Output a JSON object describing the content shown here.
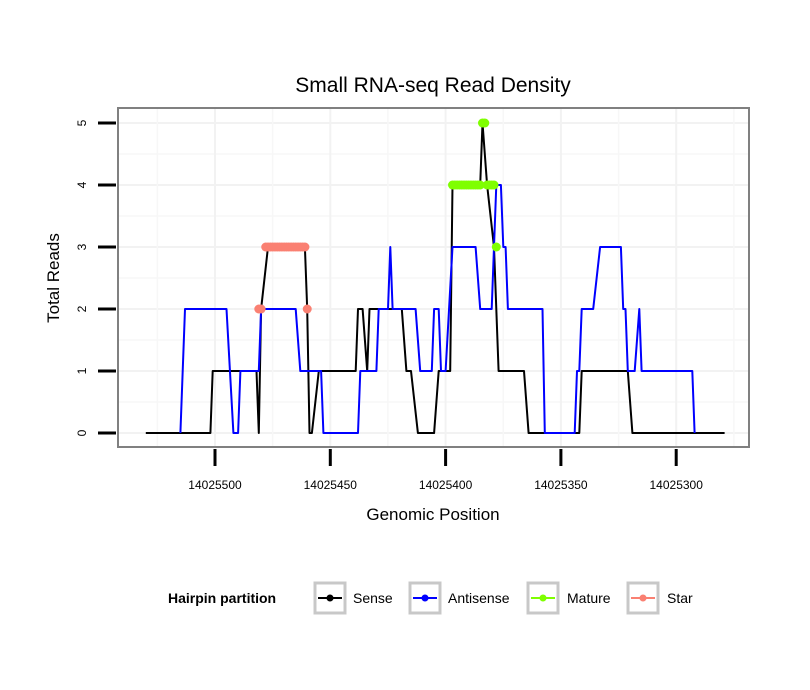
{
  "chart_data": {
    "type": "line",
    "title": "Small RNA-seq Read Density",
    "xlabel": "Genomic Position",
    "ylabel": "Total Reads",
    "x_reversed": true,
    "xlim": [
      14025542,
      14025269
    ],
    "ylim": [
      -0.2,
      5.25
    ],
    "x_ticks": [
      14025500,
      14025450,
      14025400,
      14025350,
      14025300
    ],
    "x_tick_labels": [
      "14025500",
      "14025450",
      "14025400",
      "14025350",
      "14025300"
    ],
    "y_ticks": [
      0,
      1,
      2,
      3,
      4,
      5
    ],
    "y_tick_labels": [
      "0",
      "1",
      "2",
      "3",
      "4",
      "5"
    ],
    "grid": true,
    "legend": {
      "title": "Hairpin partition",
      "placement": "bottom",
      "entries": [
        {
          "label": "Sense",
          "color": "#000000"
        },
        {
          "label": "Antisense",
          "color": "#0000ff"
        },
        {
          "label": "Mature",
          "color": "#7fff00"
        },
        {
          "label": "Star",
          "color": "#fa8072"
        }
      ]
    },
    "series": [
      {
        "name": "Sense",
        "color": "#000000",
        "points": [
          [
            14025530,
            0
          ],
          [
            14025502,
            0
          ],
          [
            14025501,
            1
          ],
          [
            14025482,
            1
          ],
          [
            14025481,
            0
          ],
          [
            14025480,
            2
          ],
          [
            14025477,
            3
          ],
          [
            14025461,
            3
          ],
          [
            14025460,
            2
          ],
          [
            14025459,
            0
          ],
          [
            14025458,
            0
          ],
          [
            14025455,
            1
          ],
          [
            14025439,
            1
          ],
          [
            14025438,
            2
          ],
          [
            14025436,
            2
          ],
          [
            14025434,
            1
          ],
          [
            14025433,
            2
          ],
          [
            14025419,
            2
          ],
          [
            14025417,
            1
          ],
          [
            14025415,
            1
          ],
          [
            14025412,
            0
          ],
          [
            14025405,
            0
          ],
          [
            14025403,
            1
          ],
          [
            14025398,
            1
          ],
          [
            14025397,
            4
          ],
          [
            14025385,
            4
          ],
          [
            14025384,
            5
          ],
          [
            14025382,
            4
          ],
          [
            14025379,
            3
          ],
          [
            14025377,
            1
          ],
          [
            14025366,
            1
          ],
          [
            14025364,
            0
          ],
          [
            14025342,
            0
          ],
          [
            14025341,
            1
          ],
          [
            14025321,
            1
          ],
          [
            14025319,
            0
          ],
          [
            14025279,
            0
          ]
        ]
      },
      {
        "name": "Antisense",
        "color": "#0000ff",
        "points": [
          [
            14025515,
            0
          ],
          [
            14025513,
            2
          ],
          [
            14025495,
            2
          ],
          [
            14025492,
            0
          ],
          [
            14025490,
            0
          ],
          [
            14025489,
            1
          ],
          [
            14025481,
            1
          ],
          [
            14025480,
            2
          ],
          [
            14025476,
            2
          ],
          [
            14025473,
            2
          ],
          [
            14025465,
            2
          ],
          [
            14025463,
            1
          ],
          [
            14025454,
            1
          ],
          [
            14025453,
            0
          ],
          [
            14025438,
            0
          ],
          [
            14025437,
            1
          ],
          [
            14025430,
            1
          ],
          [
            14025429,
            2
          ],
          [
            14025425,
            2
          ],
          [
            14025424,
            3
          ],
          [
            14025423,
            2
          ],
          [
            14025413,
            2
          ],
          [
            14025411,
            1
          ],
          [
            14025406,
            1
          ],
          [
            14025405,
            2
          ],
          [
            14025403,
            2
          ],
          [
            14025402,
            1
          ],
          [
            14025400,
            1
          ],
          [
            14025397,
            3
          ],
          [
            14025387,
            3
          ],
          [
            14025385,
            2
          ],
          [
            14025380,
            2
          ],
          [
            14025378,
            4
          ],
          [
            14025376,
            4
          ],
          [
            14025375,
            3
          ],
          [
            14025374,
            3
          ],
          [
            14025373,
            2
          ],
          [
            14025358,
            2
          ],
          [
            14025357,
            0
          ],
          [
            14025344,
            0
          ],
          [
            14025343,
            1
          ],
          [
            14025342,
            1
          ],
          [
            14025341,
            2
          ],
          [
            14025336,
            2
          ],
          [
            14025333,
            3
          ],
          [
            14025324,
            3
          ],
          [
            14025323,
            2
          ],
          [
            14025322,
            2
          ],
          [
            14025321,
            1
          ],
          [
            14025318,
            1
          ],
          [
            14025316,
            2
          ],
          [
            14025315,
            1
          ],
          [
            14025293,
            1
          ],
          [
            14025292,
            0
          ]
        ]
      },
      {
        "name": "Mature",
        "color": "#7fff00",
        "points": [
          [
            14025397,
            4
          ],
          [
            14025396,
            4
          ],
          [
            14025395,
            4
          ],
          [
            14025394,
            4
          ],
          [
            14025393,
            4
          ],
          [
            14025392,
            4
          ],
          [
            14025391,
            4
          ],
          [
            14025390,
            4
          ],
          [
            14025389,
            4
          ],
          [
            14025388,
            4
          ],
          [
            14025387,
            4
          ],
          [
            14025386,
            4
          ],
          [
            14025385,
            4
          ],
          [
            14025384,
            5
          ],
          [
            14025383,
            5
          ],
          [
            14025382,
            4
          ],
          [
            14025381,
            4
          ],
          [
            14025380,
            4
          ],
          [
            14025379,
            4
          ],
          [
            14025378,
            3
          ]
        ]
      },
      {
        "name": "Star",
        "color": "#fa8072",
        "points": [
          [
            14025481,
            2
          ],
          [
            14025480,
            2
          ],
          [
            14025478,
            3
          ],
          [
            14025477,
            3
          ],
          [
            14025476,
            3
          ],
          [
            14025475,
            3
          ],
          [
            14025474,
            3
          ],
          [
            14025473,
            3
          ],
          [
            14025472,
            3
          ],
          [
            14025471,
            3
          ],
          [
            14025470,
            3
          ],
          [
            14025469,
            3
          ],
          [
            14025468,
            3
          ],
          [
            14025467,
            3
          ],
          [
            14025466,
            3
          ],
          [
            14025465,
            3
          ],
          [
            14025464,
            3
          ],
          [
            14025463,
            3
          ],
          [
            14025462,
            3
          ],
          [
            14025461,
            3
          ],
          [
            14025460,
            2
          ]
        ]
      }
    ]
  }
}
